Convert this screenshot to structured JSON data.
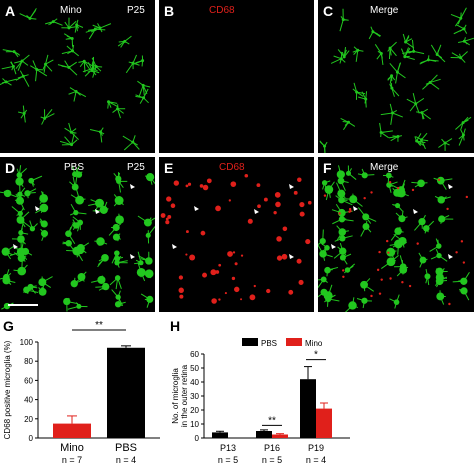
{
  "panels": {
    "A": {
      "letter": "A",
      "title": "Mino",
      "age": "P25"
    },
    "B": {
      "letter": "B",
      "title": "CD68"
    },
    "C": {
      "letter": "C",
      "title": "Merge"
    },
    "D": {
      "letter": "D",
      "title": "PBS",
      "age": "P25"
    },
    "E": {
      "letter": "E",
      "title": "CD68"
    },
    "F": {
      "letter": "F",
      "title": "Merge"
    }
  },
  "colors": {
    "green": "#22c71f",
    "red": "#e0201b",
    "black": "#000000"
  },
  "chart_data": [
    {
      "panel_letter": "G",
      "type": "bar",
      "ylabel": "CD68 positive microglia (%)",
      "ylim": [
        0,
        100
      ],
      "yticks": [
        0,
        20,
        40,
        60,
        80,
        100
      ],
      "categories": [
        "Mino",
        "PBS"
      ],
      "n_labels": [
        "n = 7",
        "n = 4"
      ],
      "values": [
        15,
        94
      ],
      "errors": [
        8,
        2
      ],
      "colors": [
        "#e0201b",
        "#000000"
      ],
      "significance": "**"
    },
    {
      "panel_letter": "H",
      "type": "bar",
      "ylabel_lines": [
        "No. of microglia",
        "in the outer retina"
      ],
      "ylim": [
        0,
        60
      ],
      "yticks": [
        0,
        10,
        20,
        30,
        40,
        50,
        60
      ],
      "categories": [
        "P13",
        "P16",
        "P19"
      ],
      "n_labels": [
        "n = 5",
        "n = 5",
        "n = 4"
      ],
      "series": [
        {
          "name": "PBS",
          "color": "#000000",
          "values": [
            4,
            5,
            42
          ],
          "errors": [
            0.8,
            0.8,
            9
          ]
        },
        {
          "name": "Mino",
          "color": "#e0201b",
          "values": [
            null,
            2.5,
            21
          ],
          "errors": [
            null,
            0.6,
            4
          ]
        }
      ],
      "significance": [
        {
          "category": "P16",
          "label": "**"
        },
        {
          "category": "P19",
          "label": "*"
        }
      ],
      "legend_position": "top"
    }
  ]
}
